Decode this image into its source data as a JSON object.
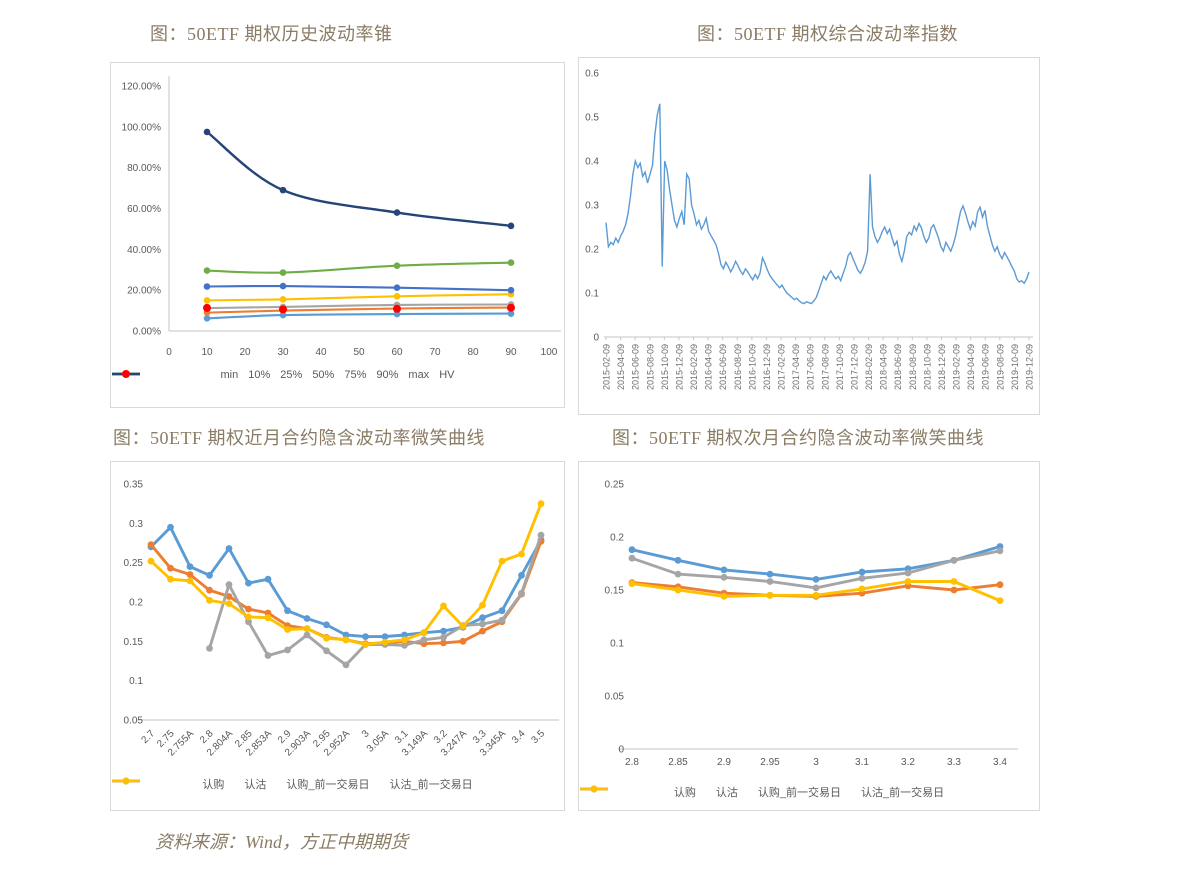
{
  "page": {
    "background": "#ffffff",
    "title_color": "#8a7c65",
    "axis_text_color": "#595959",
    "panel_border_color": "#d9d9d9",
    "source_note": "资料来源：Wind，方正中期期货"
  },
  "chart_data": [
    {
      "key": "historical-volatility-cone",
      "title": "图：50ETF 期权历史波动率锥",
      "type": "line",
      "x_values": [
        10,
        30,
        60,
        90
      ],
      "x_axis": {
        "min": 0,
        "max": 100,
        "tick_labels": [
          "0",
          "10",
          "20",
          "30",
          "40",
          "50",
          "60",
          "70",
          "80",
          "90",
          "100"
        ]
      },
      "y_axis": {
        "min": 0,
        "max": 120,
        "tick_labels": [
          "0.00%",
          "20.00%",
          "40.00%",
          "60.00%",
          "80.00%",
          "100.00%",
          "120.00%"
        ]
      },
      "legend_position": "bottom",
      "series": [
        {
          "name": "min",
          "color": "#5B9BD5",
          "values": [
            6.2,
            7.8,
            8.3,
            8.5
          ]
        },
        {
          "name": "10%",
          "color": "#ED7D31",
          "values": [
            9.0,
            10.0,
            11.0,
            11.5
          ]
        },
        {
          "name": "25%",
          "color": "#A5A5A5",
          "values": [
            11.2,
            11.8,
            12.8,
            13.0
          ]
        },
        {
          "name": "50%",
          "color": "#FFC000",
          "values": [
            15.0,
            15.5,
            17.0,
            18.0
          ]
        },
        {
          "name": "75%",
          "color": "#4472C4",
          "values": [
            21.8,
            22.0,
            21.2,
            20.0
          ]
        },
        {
          "name": "90%",
          "color": "#70AD47",
          "values": [
            29.6,
            28.6,
            32.0,
            33.5
          ]
        },
        {
          "name": "max",
          "color": "#264478",
          "values": [
            97.5,
            69.0,
            58.0,
            51.5
          ]
        },
        {
          "name": "HV",
          "color": "#FF0000",
          "values": [
            11.3,
            10.6,
            10.9,
            11.4
          ],
          "markers_only": true
        }
      ]
    },
    {
      "key": "composite-volatility-index",
      "title": "图：50ETF 期权综合波动率指数",
      "type": "line",
      "line_color": "#5B9BD5",
      "y_axis": {
        "min": 0,
        "max": 0.6,
        "tick_labels": [
          "0",
          "0.1",
          "0.2",
          "0.3",
          "0.4",
          "0.5",
          "0.6"
        ]
      },
      "x_axis": {
        "tick_labels": [
          "2015-02-09",
          "2015-04-09",
          "2015-06-09",
          "2015-08-09",
          "2015-10-09",
          "2015-12-09",
          "2016-02-09",
          "2016-04-09",
          "2016-06-09",
          "2016-08-09",
          "2016-10-09",
          "2016-12-09",
          "2017-02-09",
          "2017-04-09",
          "2017-06-09",
          "2017-08-09",
          "2017-10-09",
          "2017-12-09",
          "2018-02-09",
          "2018-04-09",
          "2018-06-09",
          "2018-08-09",
          "2018-10-09",
          "2018-12-09",
          "2019-02-09",
          "2019-04-09",
          "2019-06-09",
          "2019-08-09",
          "2019-10-09",
          "2019-12-09"
        ]
      },
      "values": [
        0.26,
        0.205,
        0.215,
        0.21,
        0.225,
        0.215,
        0.23,
        0.24,
        0.255,
        0.28,
        0.32,
        0.37,
        0.4,
        0.385,
        0.395,
        0.365,
        0.375,
        0.35,
        0.37,
        0.39,
        0.46,
        0.505,
        0.53,
        0.16,
        0.4,
        0.38,
        0.335,
        0.3,
        0.265,
        0.25,
        0.27,
        0.285,
        0.255,
        0.37,
        0.36,
        0.3,
        0.28,
        0.255,
        0.265,
        0.245,
        0.255,
        0.27,
        0.24,
        0.23,
        0.22,
        0.21,
        0.19,
        0.165,
        0.155,
        0.17,
        0.16,
        0.148,
        0.158,
        0.172,
        0.162,
        0.15,
        0.142,
        0.155,
        0.148,
        0.138,
        0.13,
        0.142,
        0.133,
        0.145,
        0.18,
        0.168,
        0.152,
        0.14,
        0.132,
        0.125,
        0.118,
        0.112,
        0.118,
        0.108,
        0.1,
        0.095,
        0.09,
        0.085,
        0.088,
        0.082,
        0.078,
        0.076,
        0.08,
        0.078,
        0.076,
        0.082,
        0.09,
        0.105,
        0.122,
        0.138,
        0.13,
        0.142,
        0.15,
        0.14,
        0.132,
        0.138,
        0.128,
        0.145,
        0.16,
        0.185,
        0.192,
        0.178,
        0.165,
        0.152,
        0.145,
        0.155,
        0.17,
        0.195,
        0.37,
        0.25,
        0.228,
        0.215,
        0.225,
        0.24,
        0.25,
        0.235,
        0.245,
        0.225,
        0.208,
        0.218,
        0.188,
        0.172,
        0.195,
        0.228,
        0.238,
        0.232,
        0.252,
        0.242,
        0.258,
        0.248,
        0.228,
        0.215,
        0.225,
        0.248,
        0.255,
        0.24,
        0.225,
        0.205,
        0.195,
        0.215,
        0.205,
        0.195,
        0.21,
        0.23,
        0.258,
        0.285,
        0.298,
        0.282,
        0.262,
        0.245,
        0.262,
        0.252,
        0.285,
        0.295,
        0.272,
        0.288,
        0.252,
        0.23,
        0.21,
        0.195,
        0.205,
        0.188,
        0.178,
        0.192,
        0.182,
        0.172,
        0.16,
        0.15,
        0.132,
        0.125,
        0.128,
        0.122,
        0.132,
        0.148
      ]
    },
    {
      "key": "near-month-iv-smile",
      "title": "图：50ETF 期权近月合约隐含波动率微笑曲线",
      "type": "line",
      "categories": [
        "2.7",
        "2.75",
        "2.755A",
        "2.8",
        "2.804A",
        "2.85",
        "2.853A",
        "2.9",
        "2.903A",
        "2.95",
        "2.952A",
        "3",
        "3.05A",
        "3.1",
        "3.149A",
        "3.2",
        "3.247A",
        "3.3",
        "3.345A",
        "3.4",
        "3.5"
      ],
      "y_axis": {
        "min": 0.05,
        "max": 0.35,
        "tick_labels": [
          "0.05",
          "0.1",
          "0.15",
          "0.2",
          "0.25",
          "0.3",
          "0.35"
        ]
      },
      "legend_position": "bottom",
      "series": [
        {
          "name": "认购",
          "color": "#5B9BD5",
          "values": [
            0.27,
            0.295,
            0.245,
            0.234,
            0.268,
            0.224,
            0.229,
            0.189,
            0.179,
            0.171,
            0.158,
            0.156,
            0.156,
            0.158,
            0.161,
            0.163,
            0.168,
            0.18,
            0.189,
            0.234,
            0.279
          ]
        },
        {
          "name": "认沽",
          "color": "#ED7D31",
          "values": [
            0.273,
            0.243,
            0.235,
            0.215,
            0.207,
            0.191,
            0.186,
            0.17,
            0.166,
            0.155,
            0.152,
            0.147,
            0.148,
            0.15,
            0.147,
            0.148,
            0.15,
            0.163,
            0.175,
            0.21,
            0.277
          ]
        },
        {
          "name": "认购_前一交易日",
          "color": "#A5A5A5",
          "values": [
            null,
            null,
            null,
            0.141,
            0.222,
            0.175,
            0.132,
            0.139,
            0.158,
            0.138,
            0.12,
            0.146,
            0.146,
            0.145,
            0.152,
            0.155,
            0.17,
            0.172,
            0.177,
            0.211,
            0.285
          ]
        },
        {
          "name": "认沽_前一交易日",
          "color": "#FFC000",
          "values": [
            0.252,
            0.229,
            0.227,
            0.202,
            0.198,
            0.181,
            0.18,
            0.165,
            0.166,
            0.154,
            0.152,
            0.146,
            0.149,
            0.152,
            0.161,
            0.195,
            0.169,
            0.196,
            0.252,
            0.261,
            0.325
          ]
        }
      ]
    },
    {
      "key": "next-month-iv-smile",
      "title": "图：50ETF 期权次月合约隐含波动率微笑曲线",
      "type": "line",
      "categories": [
        "2.8",
        "2.85",
        "2.9",
        "2.95",
        "3",
        "3.1",
        "3.2",
        "3.3",
        "3.4"
      ],
      "y_axis": {
        "min": 0,
        "max": 0.25,
        "tick_labels": [
          "0",
          "0.05",
          "0.1",
          "0.15",
          "0.2",
          "0.25"
        ]
      },
      "legend_position": "bottom",
      "series": [
        {
          "name": "认购",
          "color": "#5B9BD5",
          "values": [
            0.188,
            0.178,
            0.169,
            0.165,
            0.16,
            0.167,
            0.17,
            0.178,
            0.191
          ]
        },
        {
          "name": "认沽",
          "color": "#ED7D31",
          "values": [
            0.157,
            0.153,
            0.147,
            0.145,
            0.144,
            0.147,
            0.154,
            0.15,
            0.155
          ]
        },
        {
          "name": "认购_前一交易日",
          "color": "#A5A5A5",
          "values": [
            0.18,
            0.165,
            0.162,
            0.158,
            0.152,
            0.161,
            0.166,
            0.178,
            0.187
          ]
        },
        {
          "name": "认沽_前一交易日",
          "color": "#FFC000",
          "values": [
            0.156,
            0.15,
            0.144,
            0.145,
            0.145,
            0.151,
            0.158,
            0.158,
            0.14
          ]
        }
      ]
    }
  ]
}
